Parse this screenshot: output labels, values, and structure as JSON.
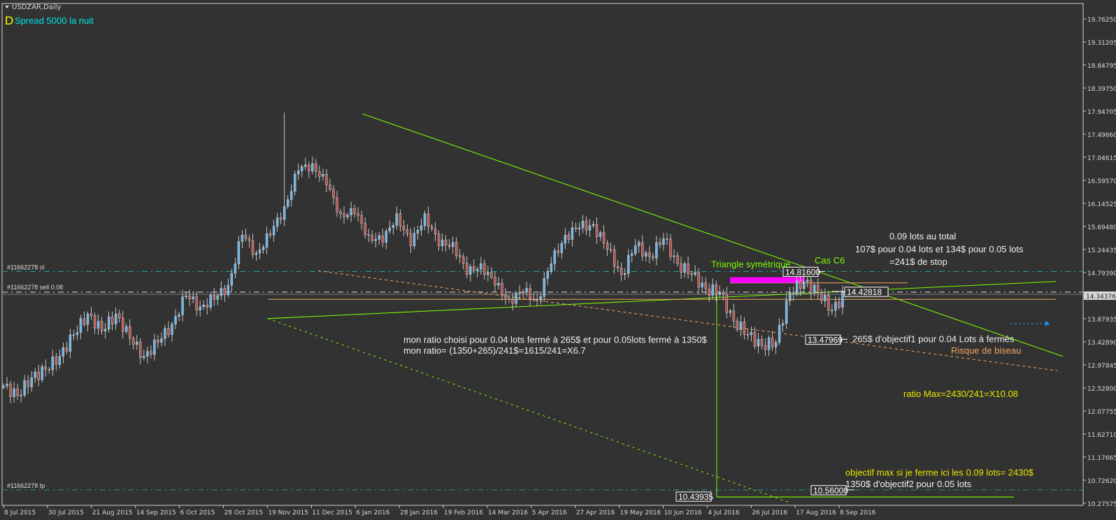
{
  "header": {
    "symbol_timeframe": "USDZAR,Daily",
    "indicator_letter": "D",
    "indicator_text": "Spread 5000 la nuit"
  },
  "colors": {
    "background": "#323232",
    "bull_candle": "#6eb4e6",
    "bear_candle": "#b85450",
    "trendline": "#7cfc00",
    "orange_line": "#f4a460",
    "order_line": "#1e9a9a",
    "magenta_zone": "#ff00ff",
    "yellow_text": "#e6e600",
    "arrow_blue": "#1e90ff"
  },
  "orders": {
    "sl_label": "#11662278 sl",
    "sell_label": "#11662278 sell 0.08",
    "tp_label": "#11662278 tp"
  },
  "annotations": {
    "triangle": "Triangle symétrique",
    "cas": "Cas C6",
    "total_lots": "0.09 lots au total",
    "stop_split": "107$ pour 0.04 lots et 134$ pour 0.05 lots",
    "stop_total": "=241$ de stop",
    "ratio_choice_1": "mon ratio choisi pour 0.04 lots fermé à 265$ et pour 0.05lots fermé à 1350$",
    "ratio_choice_2": "mon ratio= (1350+265)/241$=1615/241=X6.7",
    "objective1": "265$ d'objectif1 pour 0.04 Lots à fermés",
    "wedge_risk": "Risque de biseau",
    "ratio_max": "ratio Max=2430/241=X10.08",
    "objective_max": "objectif max si je ferme ici les 0.09 lots= 2430$",
    "objective2": "1350$ d'objectif2 pour 0.05 lots"
  },
  "price_labels": {
    "high_box": "14.81600",
    "entry_box": "14.42818",
    "objective1_box": "13.47969",
    "objective2_box": "10.56000",
    "projection_box": "10.43935"
  },
  "chart_data": {
    "type": "candlestick",
    "title": "USDZAR,Daily",
    "current_price": "14.34376",
    "closes": [
      12.58,
      12.39,
      12.74,
      12.9,
      13.16,
      13.58,
      13.99,
      13.65,
      13.99,
      13.51,
      13.16,
      13.43,
      13.79,
      14.34,
      14.13,
      14.27,
      14.55,
      15.53,
      15.18,
      15.53,
      16.09,
      16.79,
      16.93,
      16.51,
      15.95,
      15.95,
      15.53,
      15.39,
      15.95,
      15.32,
      15.95,
      15.32,
      15.39,
      14.76,
      14.97,
      14.55,
      14.27,
      14.41,
      14.27,
      14.97,
      15.53,
      15.67,
      15.74,
      15.25,
      14.76,
      15.32,
      15.11,
      15.46,
      14.97,
      14.76,
      14.48,
      14.41,
      13.85,
      13.58,
      13.37,
      13.43,
      14.41,
      14.62,
      14.41,
      14.06,
      14.41
    ],
    "spike_high": {
      "index": 21,
      "value": 17.93
    },
    "ylim": [
      10.27575,
      19.7625
    ],
    "y_ticks": [
      "19.76250",
      "19.31205",
      "18.84795",
      "18.39750",
      "17.94705",
      "17.49660",
      "17.04615",
      "16.59570",
      "16.14525",
      "15.69480",
      "15.24435",
      "14.79390",
      "14.34376",
      "13.87935",
      "13.42890",
      "12.97845",
      "12.52800",
      "12.07755",
      "11.62710",
      "11.17665",
      "10.72620",
      "10.27575"
    ],
    "x_ticks": [
      "8 Jul 2015",
      "30 Jul 2015",
      "21 Aug 2015",
      "14 Sep 2015",
      "6 Oct 2015",
      "28 Oct 2015",
      "19 Nov 2015",
      "11 Dec 2015",
      "6 Jan 2016",
      "28 Jan 2016",
      "19 Feb 2016",
      "14 Mar 2016",
      "5 Apr 2016",
      "27 Apr 2016",
      "19 May 2016",
      "10 Jun 2016",
      "4 Jul 2016",
      "26 Jul 2016",
      "17 Aug 2016",
      "8 Sep 2016"
    ],
    "grid": false,
    "legend": "none"
  }
}
